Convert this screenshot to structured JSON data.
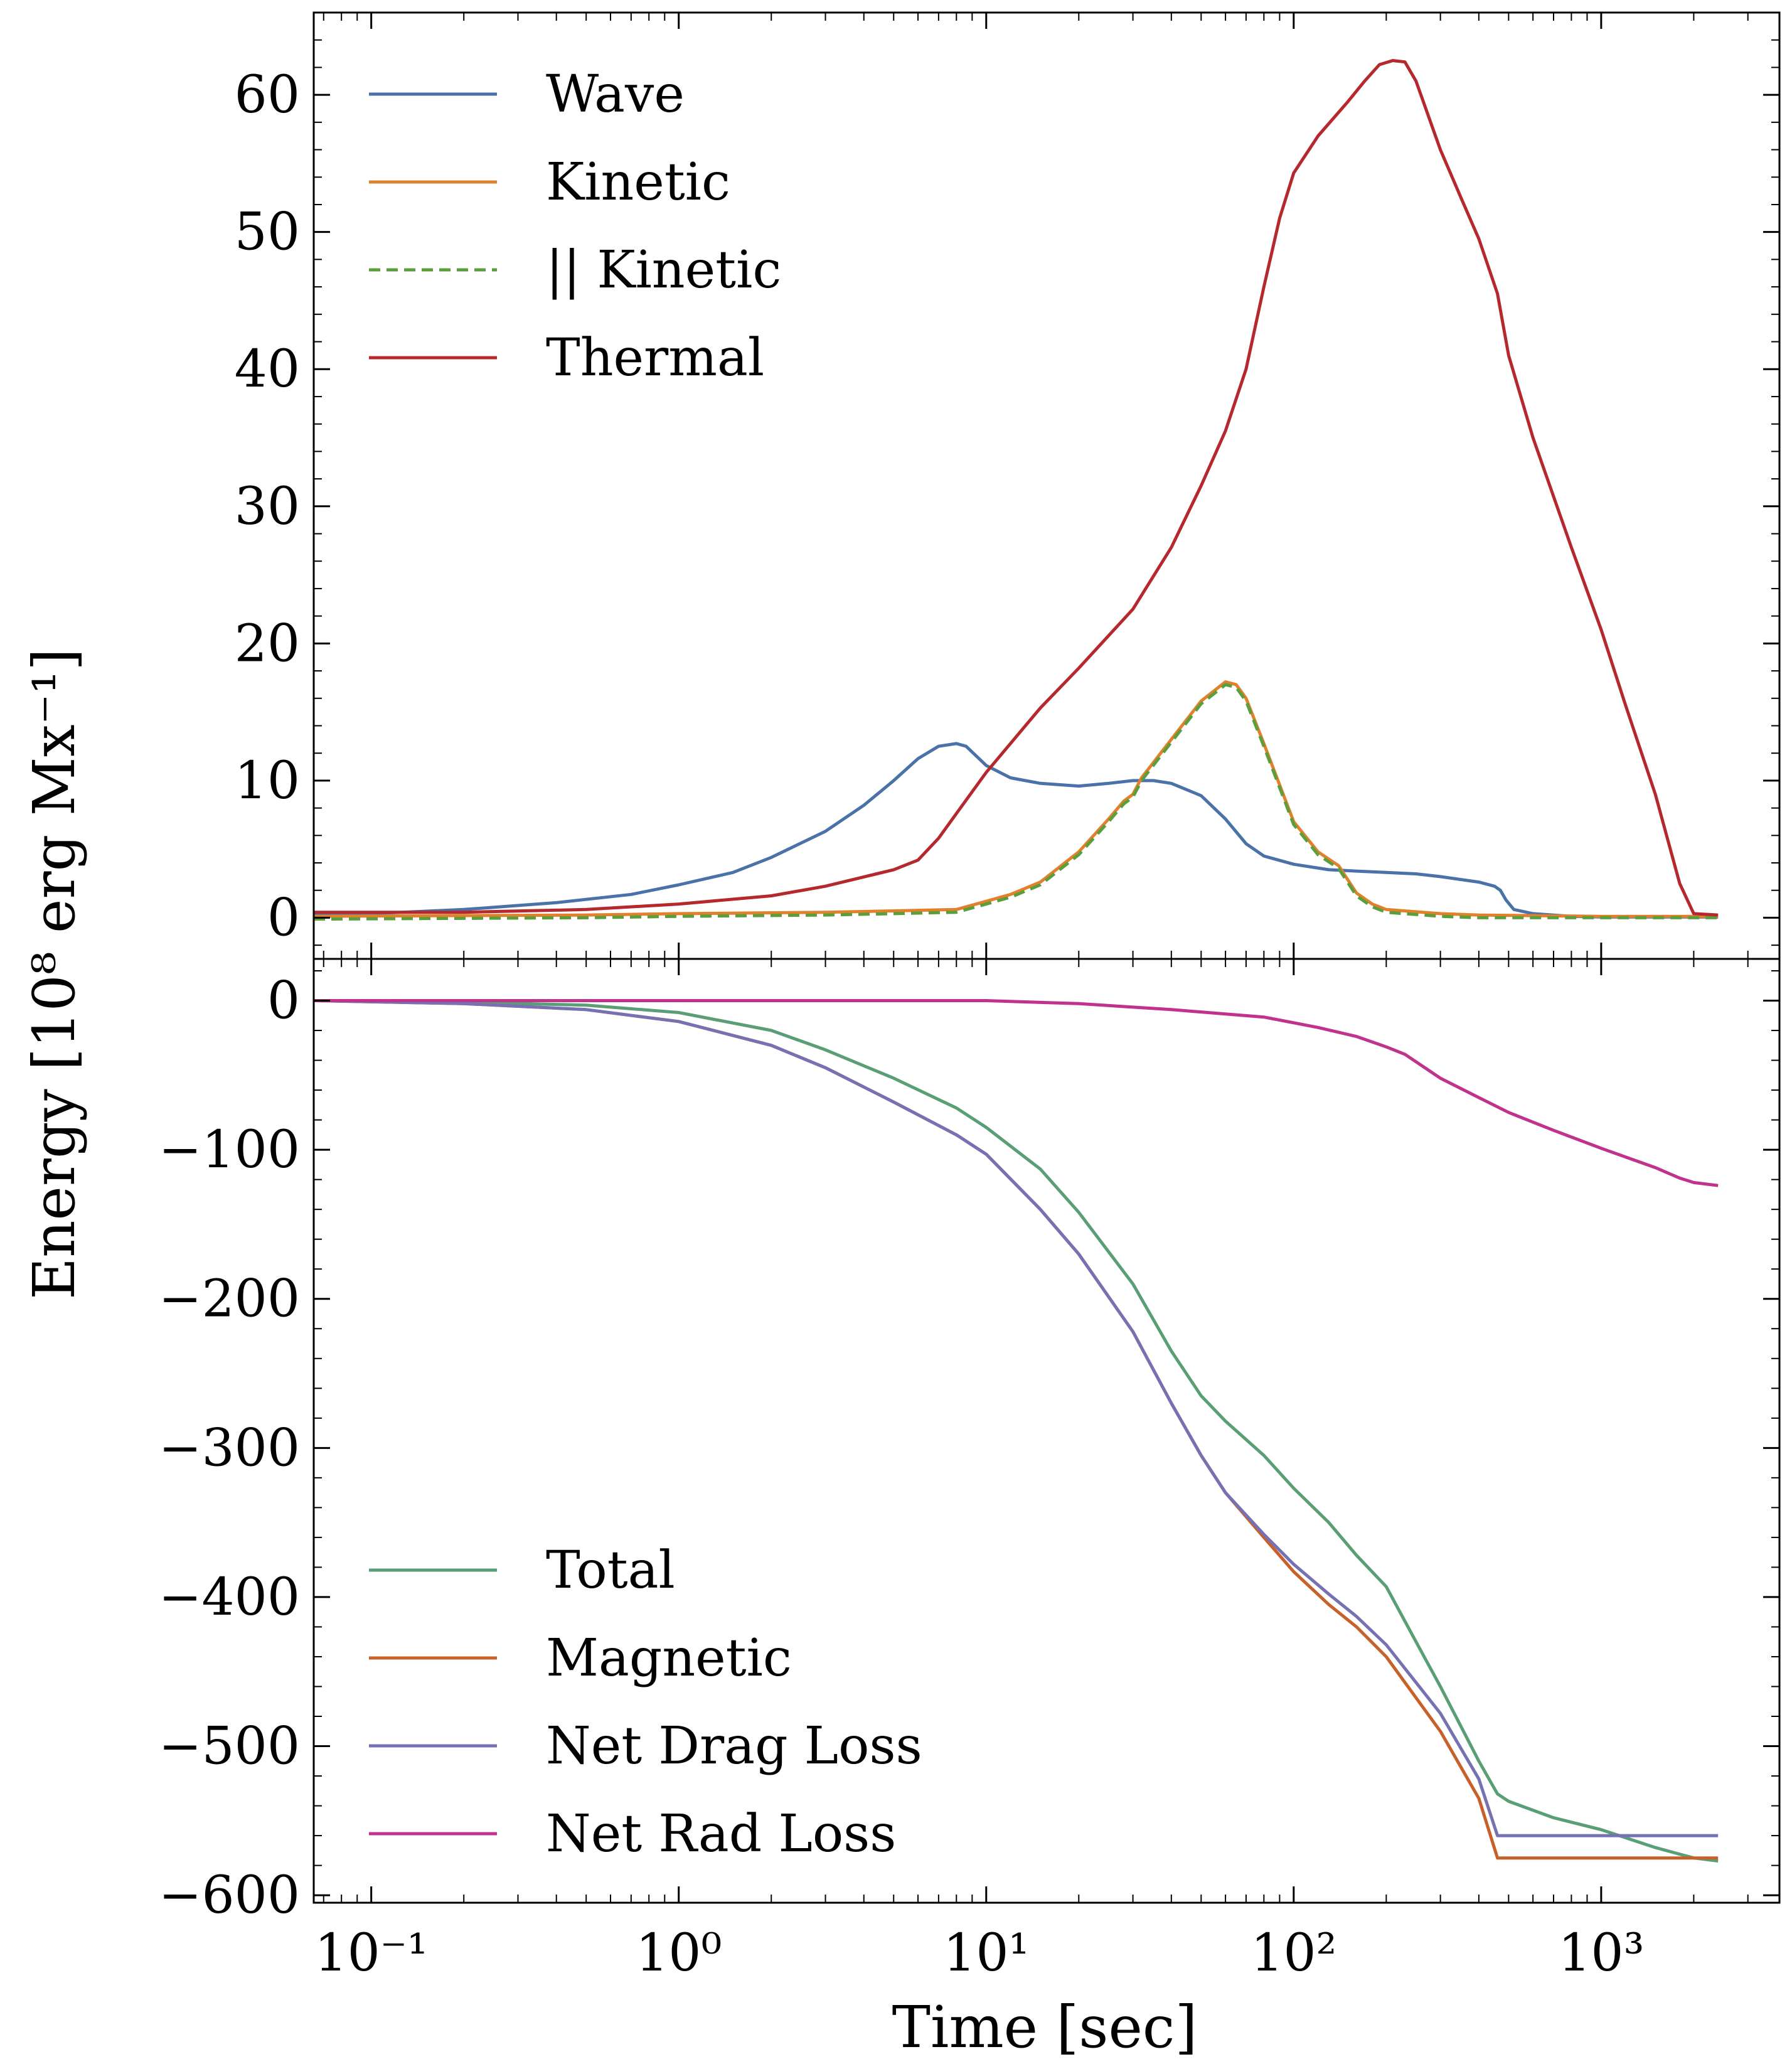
{
  "figure": {
    "ylabel": "Energy [10⁸ erg Mx⁻¹]",
    "xlabel": "Time [sec]"
  },
  "chart_data": [
    {
      "type": "line",
      "panel": "top",
      "x_scale": "log",
      "xlim": [
        0.065,
        3800
      ],
      "ylim": [
        -3,
        66
      ],
      "y_ticks": [
        0,
        10,
        20,
        30,
        40,
        50,
        60
      ],
      "legend_position": "top-left",
      "series": [
        {
          "name": "Wave",
          "color": "#4a72a8",
          "dash": "solid",
          "points": [
            [
              0.065,
              0.2
            ],
            [
              0.1,
              0.3
            ],
            [
              0.2,
              0.6
            ],
            [
              0.4,
              1.1
            ],
            [
              0.7,
              1.7
            ],
            [
              1,
              2.4
            ],
            [
              1.5,
              3.3
            ],
            [
              2,
              4.4
            ],
            [
              3,
              6.3
            ],
            [
              4,
              8.2
            ],
            [
              5,
              10.0
            ],
            [
              6,
              11.6
            ],
            [
              7,
              12.5
            ],
            [
              8,
              12.7
            ],
            [
              8.6,
              12.5
            ],
            [
              10,
              11.1
            ],
            [
              12,
              10.2
            ],
            [
              15,
              9.8
            ],
            [
              20,
              9.6
            ],
            [
              25,
              9.8
            ],
            [
              30,
              10.0
            ],
            [
              35,
              10.0
            ],
            [
              40,
              9.8
            ],
            [
              50,
              8.9
            ],
            [
              60,
              7.2
            ],
            [
              70,
              5.4
            ],
            [
              80,
              4.5
            ],
            [
              100,
              3.9
            ],
            [
              130,
              3.5
            ],
            [
              160,
              3.4
            ],
            [
              200,
              3.3
            ],
            [
              250,
              3.2
            ],
            [
              300,
              3.0
            ],
            [
              400,
              2.6
            ],
            [
              450,
              2.3
            ],
            [
              470,
              2.0
            ],
            [
              490,
              1.3
            ],
            [
              520,
              0.6
            ],
            [
              600,
              0.3
            ],
            [
              800,
              0.1
            ],
            [
              1000,
              0.05
            ],
            [
              1500,
              0.05
            ],
            [
              2400,
              0.05
            ]
          ]
        },
        {
          "name": "Kinetic",
          "color": "#e1812c",
          "dash": "solid",
          "points": [
            [
              0.065,
              0.1
            ],
            [
              0.5,
              0.2
            ],
            [
              1,
              0.3
            ],
            [
              3,
              0.4
            ],
            [
              5,
              0.5
            ],
            [
              8,
              0.6
            ],
            [
              10,
              1.2
            ],
            [
              12,
              1.7
            ],
            [
              15,
              2.6
            ],
            [
              20,
              4.8
            ],
            [
              25,
              7.2
            ],
            [
              28,
              8.5
            ],
            [
              30,
              9.0
            ],
            [
              32,
              10.2
            ],
            [
              40,
              13.0
            ],
            [
              50,
              15.8
            ],
            [
              60,
              17.2
            ],
            [
              65,
              17.0
            ],
            [
              70,
              16.0
            ],
            [
              80,
              12.7
            ],
            [
              100,
              7.0
            ],
            [
              120,
              4.8
            ],
            [
              140,
              3.8
            ],
            [
              160,
              1.8
            ],
            [
              180,
              1.0
            ],
            [
              200,
              0.6
            ],
            [
              300,
              0.3
            ],
            [
              400,
              0.2
            ],
            [
              1000,
              0.1
            ],
            [
              2400,
              0.1
            ]
          ]
        },
        {
          "name": "|| Kinetic",
          "color": "#5b9e3c",
          "dash": "dashed",
          "points": [
            [
              0.065,
              -0.1
            ],
            [
              0.5,
              0.0
            ],
            [
              1,
              0.1
            ],
            [
              3,
              0.2
            ],
            [
              5,
              0.3
            ],
            [
              8,
              0.4
            ],
            [
              10,
              1.0
            ],
            [
              12,
              1.5
            ],
            [
              15,
              2.4
            ],
            [
              20,
              4.6
            ],
            [
              25,
              7.0
            ],
            [
              28,
              8.3
            ],
            [
              30,
              8.8
            ],
            [
              32,
              10.0
            ],
            [
              40,
              12.8
            ],
            [
              50,
              15.6
            ],
            [
              60,
              17.0
            ],
            [
              65,
              16.8
            ],
            [
              70,
              15.8
            ],
            [
              80,
              12.5
            ],
            [
              100,
              6.8
            ],
            [
              120,
              4.6
            ],
            [
              140,
              3.6
            ],
            [
              160,
              1.6
            ],
            [
              180,
              0.8
            ],
            [
              200,
              0.4
            ],
            [
              300,
              0.1
            ],
            [
              400,
              0.0
            ],
            [
              1000,
              0.0
            ],
            [
              2400,
              0.0
            ]
          ]
        },
        {
          "name": "Thermal",
          "color": "#b5292e",
          "dash": "solid",
          "points": [
            [
              0.065,
              0.4
            ],
            [
              0.1,
              0.4
            ],
            [
              0.2,
              0.4
            ],
            [
              0.5,
              0.6
            ],
            [
              1,
              1.0
            ],
            [
              2,
              1.6
            ],
            [
              3,
              2.3
            ],
            [
              5,
              3.5
            ],
            [
              6,
              4.2
            ],
            [
              7,
              5.8
            ],
            [
              8,
              7.6
            ],
            [
              10,
              10.6
            ],
            [
              15,
              15.3
            ],
            [
              20,
              18.2
            ],
            [
              30,
              22.5
            ],
            [
              40,
              27.0
            ],
            [
              50,
              31.5
            ],
            [
              60,
              35.5
            ],
            [
              70,
              40.0
            ],
            [
              80,
              46.0
            ],
            [
              90,
              51.0
            ],
            [
              100,
              54.3
            ],
            [
              120,
              57.0
            ],
            [
              150,
              59.5
            ],
            [
              170,
              61.0
            ],
            [
              190,
              62.2
            ],
            [
              210,
              62.5
            ],
            [
              230,
              62.4
            ],
            [
              250,
              61.0
            ],
            [
              300,
              56.0
            ],
            [
              350,
              52.5
            ],
            [
              400,
              49.5
            ],
            [
              460,
              45.5
            ],
            [
              500,
              41.0
            ],
            [
              600,
              35.0
            ],
            [
              800,
              27.0
            ],
            [
              1000,
              21.0
            ],
            [
              1200,
              15.5
            ],
            [
              1500,
              9.0
            ],
            [
              1800,
              2.5
            ],
            [
              2000,
              0.3
            ],
            [
              2400,
              0.2
            ]
          ]
        }
      ]
    },
    {
      "type": "line",
      "panel": "bottom",
      "x_scale": "log",
      "xlim": [
        0.065,
        3800
      ],
      "ylim": [
        -605,
        28
      ],
      "y_ticks": [
        0,
        -100,
        -200,
        -300,
        -400,
        -500,
        -600
      ],
      "x_ticks": [
        0.1,
        1,
        10,
        100,
        1000
      ],
      "xlabel": "Time [sec]",
      "legend_position": "bottom-left",
      "series": [
        {
          "name": "Total",
          "color": "#5a9e76",
          "dash": "solid",
          "points": [
            [
              0.065,
              0
            ],
            [
              0.2,
              -1
            ],
            [
              0.5,
              -3
            ],
            [
              1,
              -8
            ],
            [
              2,
              -20
            ],
            [
              3,
              -33
            ],
            [
              5,
              -52
            ],
            [
              8,
              -72
            ],
            [
              10,
              -85
            ],
            [
              15,
              -113
            ],
            [
              20,
              -142
            ],
            [
              30,
              -190
            ],
            [
              40,
              -235
            ],
            [
              50,
              -265
            ],
            [
              60,
              -282
            ],
            [
              80,
              -305
            ],
            [
              100,
              -327
            ],
            [
              130,
              -350
            ],
            [
              160,
              -372
            ],
            [
              200,
              -393
            ],
            [
              250,
              -430
            ],
            [
              300,
              -460
            ],
            [
              400,
              -510
            ],
            [
              460,
              -532
            ],
            [
              500,
              -537
            ],
            [
              700,
              -548
            ],
            [
              1000,
              -556
            ],
            [
              1500,
              -568
            ],
            [
              2000,
              -575
            ],
            [
              2400,
              -577
            ]
          ]
        },
        {
          "name": "Magnetic",
          "color": "#c8602a",
          "dash": "solid",
          "points": [
            [
              0.065,
              0
            ],
            [
              0.2,
              -2
            ],
            [
              0.5,
              -6
            ],
            [
              1,
              -14
            ],
            [
              2,
              -30
            ],
            [
              3,
              -45
            ],
            [
              5,
              -68
            ],
            [
              8,
              -90
            ],
            [
              10,
              -103
            ],
            [
              15,
              -140
            ],
            [
              20,
              -170
            ],
            [
              30,
              -222
            ],
            [
              40,
              -270
            ],
            [
              50,
              -305
            ],
            [
              60,
              -330
            ],
            [
              80,
              -360
            ],
            [
              100,
              -383
            ],
            [
              130,
              -405
            ],
            [
              160,
              -420
            ],
            [
              200,
              -440
            ],
            [
              300,
              -490
            ],
            [
              400,
              -535
            ],
            [
              460,
              -575
            ],
            [
              1000,
              -575
            ],
            [
              2400,
              -575
            ]
          ]
        },
        {
          "name": "Net Drag Loss",
          "color": "#7571b3",
          "dash": "solid",
          "points": [
            [
              0.065,
              0
            ],
            [
              0.2,
              -2
            ],
            [
              0.5,
              -6
            ],
            [
              1,
              -14
            ],
            [
              2,
              -30
            ],
            [
              3,
              -45
            ],
            [
              5,
              -68
            ],
            [
              8,
              -90
            ],
            [
              10,
              -103
            ],
            [
              15,
              -140
            ],
            [
              20,
              -170
            ],
            [
              30,
              -222
            ],
            [
              40,
              -270
            ],
            [
              50,
              -305
            ],
            [
              60,
              -330
            ],
            [
              80,
              -358
            ],
            [
              100,
              -378
            ],
            [
              130,
              -398
            ],
            [
              160,
              -413
            ],
            [
              200,
              -432
            ],
            [
              300,
              -478
            ],
            [
              400,
              -522
            ],
            [
              460,
              -560
            ],
            [
              1000,
              -560
            ],
            [
              2400,
              -560
            ]
          ]
        },
        {
          "name": "Net Rad Loss",
          "color": "#c1328d",
          "dash": "solid",
          "points": [
            [
              0.065,
              0
            ],
            [
              1,
              0
            ],
            [
              3,
              0
            ],
            [
              10,
              0
            ],
            [
              20,
              -2
            ],
            [
              40,
              -6
            ],
            [
              80,
              -11
            ],
            [
              120,
              -18
            ],
            [
              160,
              -24
            ],
            [
              200,
              -31
            ],
            [
              230,
              -36
            ],
            [
              300,
              -52
            ],
            [
              400,
              -65
            ],
            [
              500,
              -75
            ],
            [
              700,
              -87
            ],
            [
              1000,
              -99
            ],
            [
              1500,
              -112
            ],
            [
              1800,
              -119
            ],
            [
              2000,
              -122
            ],
            [
              2400,
              -124
            ]
          ]
        }
      ]
    }
  ]
}
